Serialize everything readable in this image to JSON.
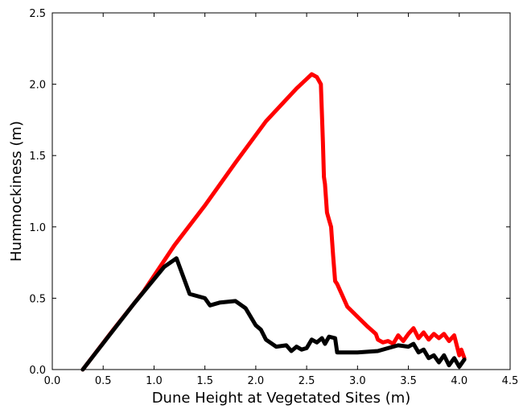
{
  "chart_data": {
    "type": "line",
    "title": "",
    "xlabel": "Dune Height at Vegetated Sites (m)",
    "ylabel": "Hummockiness (m)",
    "xlim": [
      0.0,
      4.5
    ],
    "ylim": [
      0.0,
      2.5
    ],
    "x_ticks": [
      "0.0",
      "0.5",
      "1.0",
      "1.5",
      "2.0",
      "2.5",
      "3.0",
      "3.5",
      "4.0",
      "4.5"
    ],
    "y_ticks": [
      "0.0",
      "0.5",
      "1.0",
      "1.5",
      "2.0",
      "2.5"
    ],
    "grid": false,
    "legend": "none",
    "series": [
      {
        "color": "#ff0000",
        "x": [
          0.3,
          0.6,
          0.9,
          1.2,
          1.5,
          1.8,
          2.1,
          2.4,
          2.55,
          2.6,
          2.64,
          2.66,
          2.67,
          2.68,
          2.7,
          2.72,
          2.74,
          2.76,
          2.78,
          2.8,
          2.85,
          2.9,
          3.0,
          3.1,
          3.18,
          3.2,
          3.25,
          3.3,
          3.35,
          3.4,
          3.45,
          3.5,
          3.55,
          3.6,
          3.65,
          3.7,
          3.75,
          3.8,
          3.85,
          3.9,
          3.95,
          4.0,
          4.02,
          4.05
        ],
        "y": [
          0.0,
          0.28,
          0.55,
          0.87,
          1.15,
          1.45,
          1.74,
          1.97,
          2.07,
          2.05,
          2.0,
          1.6,
          1.35,
          1.3,
          1.1,
          1.05,
          1.0,
          0.8,
          0.62,
          0.6,
          0.52,
          0.44,
          0.37,
          0.3,
          0.25,
          0.21,
          0.19,
          0.2,
          0.18,
          0.24,
          0.2,
          0.25,
          0.29,
          0.22,
          0.26,
          0.21,
          0.25,
          0.22,
          0.25,
          0.2,
          0.24,
          0.1,
          0.14,
          0.08
        ]
      },
      {
        "color": "#000000",
        "x": [
          0.3,
          0.55,
          0.8,
          1.1,
          1.22,
          1.35,
          1.5,
          1.55,
          1.65,
          1.8,
          1.9,
          2.0,
          2.05,
          2.1,
          2.2,
          2.3,
          2.35,
          2.4,
          2.45,
          2.5,
          2.55,
          2.6,
          2.65,
          2.68,
          2.72,
          2.78,
          2.8,
          3.0,
          3.2,
          3.3,
          3.4,
          3.5,
          3.55,
          3.6,
          3.65,
          3.7,
          3.75,
          3.8,
          3.85,
          3.9,
          3.95,
          4.0,
          4.05
        ],
        "y": [
          0.0,
          0.23,
          0.46,
          0.72,
          0.78,
          0.53,
          0.5,
          0.45,
          0.47,
          0.48,
          0.43,
          0.31,
          0.28,
          0.21,
          0.16,
          0.17,
          0.13,
          0.16,
          0.14,
          0.15,
          0.21,
          0.19,
          0.22,
          0.18,
          0.23,
          0.22,
          0.12,
          0.12,
          0.13,
          0.15,
          0.17,
          0.16,
          0.18,
          0.12,
          0.14,
          0.08,
          0.1,
          0.05,
          0.1,
          0.03,
          0.08,
          0.02,
          0.07
        ]
      }
    ]
  }
}
